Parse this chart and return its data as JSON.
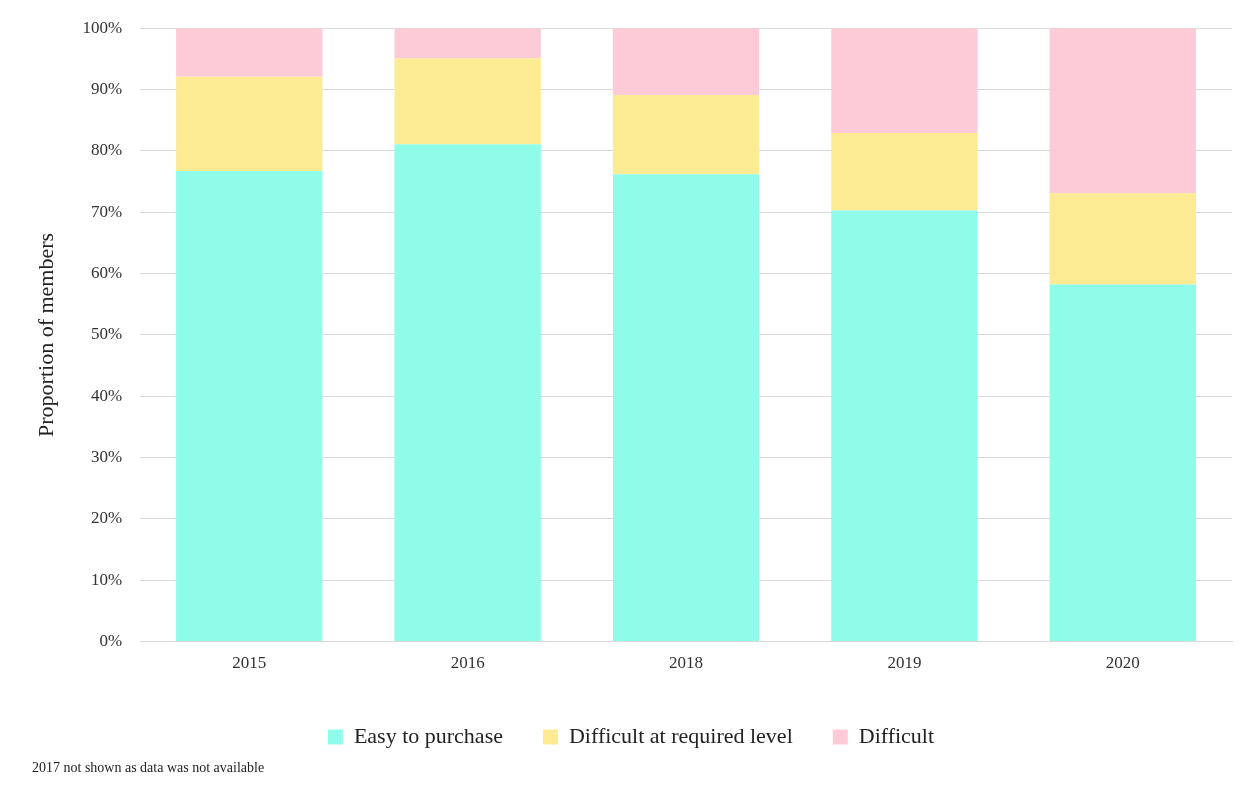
{
  "chart_data": {
    "type": "bar",
    "stacked": true,
    "ylabel": "Proportion of members",
    "categories": [
      "2015",
      "2016",
      "2018",
      "2019",
      "2020"
    ],
    "series": [
      {
        "name": "Easy to purchase",
        "color": "#8ffbe9",
        "values": [
          76.7,
          81.1,
          76.2,
          70.3,
          58.2
        ]
      },
      {
        "name": "Difficult at required level",
        "color": "#fdeb93",
        "values": [
          15.4,
          14.0,
          12.9,
          12.6,
          14.9
        ]
      },
      {
        "name": "Difficult",
        "color": "#fccbd7",
        "values": [
          7.9,
          4.9,
          10.9,
          17.1,
          26.9
        ]
      }
    ],
    "ylim": [
      0,
      100
    ],
    "yticks": [
      {
        "value": 0,
        "label": "0%"
      },
      {
        "value": 10,
        "label": "10%"
      },
      {
        "value": 20,
        "label": "20%"
      },
      {
        "value": 30,
        "label": "30%"
      },
      {
        "value": 40,
        "label": "40%"
      },
      {
        "value": 50,
        "label": "50%"
      },
      {
        "value": 60,
        "label": "60%"
      },
      {
        "value": 70,
        "label": "70%"
      },
      {
        "value": 80,
        "label": "80%"
      },
      {
        "value": 90,
        "label": "90%"
      },
      {
        "value": 100,
        "label": "100%"
      }
    ],
    "grid": "y",
    "legend": "bottom",
    "annotations": [
      "2017 not shown as data was not available"
    ]
  }
}
